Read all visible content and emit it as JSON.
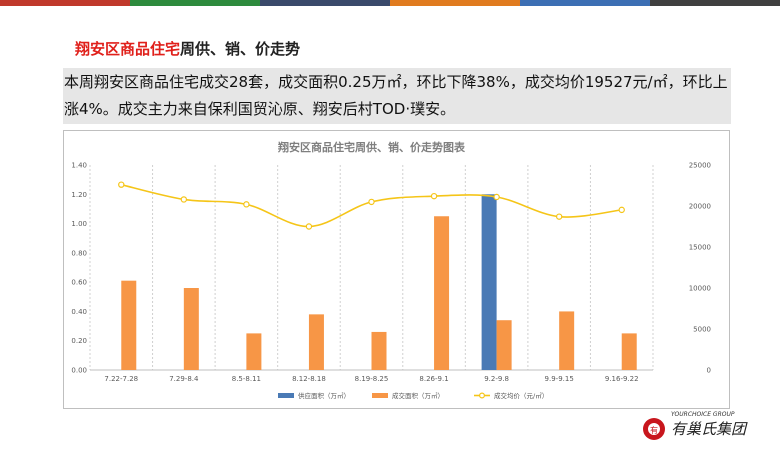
{
  "topbar_colors": [
    "#c0392b",
    "#2e8b3d",
    "#3a4a6b",
    "#e07b1f",
    "#3c6fb4",
    "#404040"
  ],
  "heading": {
    "red": "翔安区商品住宅",
    "black": "周供、销、价走势"
  },
  "summary": "本周翔安区商品住宅成交28套，成交面积0.25万㎡，环比下降38%，成交均价19527元/㎡，环比上涨4%。成交主力来自保利国贸沁原、翔安后村TOD·璞安。",
  "chart_data": {
    "type": "bar",
    "title": "翔安区商品住宅周供、销、价走势图表",
    "categories": [
      "7.22-7.28",
      "7.29-8.4",
      "8.5-8.11",
      "8.12-8.18",
      "8.19-8.25",
      "8.26-9.1",
      "9.2-9.8",
      "9.9-9.15",
      "9.16-9.22"
    ],
    "series": [
      {
        "name": "供应面积（万㎡）",
        "type": "bar",
        "axis": "left",
        "color": "#4a7ab5",
        "values": [
          0,
          0,
          0,
          0,
          0,
          0,
          1.2,
          0,
          0
        ]
      },
      {
        "name": "成交面积（万㎡）",
        "type": "bar",
        "axis": "left",
        "color": "#f79646",
        "values": [
          0.61,
          0.56,
          0.25,
          0.38,
          0.26,
          1.05,
          0.34,
          0.4,
          0.25
        ]
      },
      {
        "name": "成交均价（元/㎡）",
        "type": "line",
        "axis": "right",
        "color": "#f5c518",
        "values": [
          22600,
          20800,
          20200,
          17500,
          20500,
          21200,
          21100,
          18700,
          19527
        ]
      }
    ],
    "y_left": {
      "min": 0,
      "max": 1.4,
      "ticks": [
        "0.00",
        "0.20",
        "0.40",
        "0.60",
        "0.80",
        "1.00",
        "1.20",
        "1.40"
      ]
    },
    "y_right": {
      "min": 0,
      "max": 25000,
      "ticks": [
        "0",
        "5000",
        "10000",
        "15000",
        "20000",
        "25000"
      ]
    },
    "grid": "vertical-dashed",
    "legend": "bottom"
  },
  "logo": {
    "sub": "YOURCHOICE GROUP",
    "main": "有巢氏集团",
    "mark": "有"
  }
}
